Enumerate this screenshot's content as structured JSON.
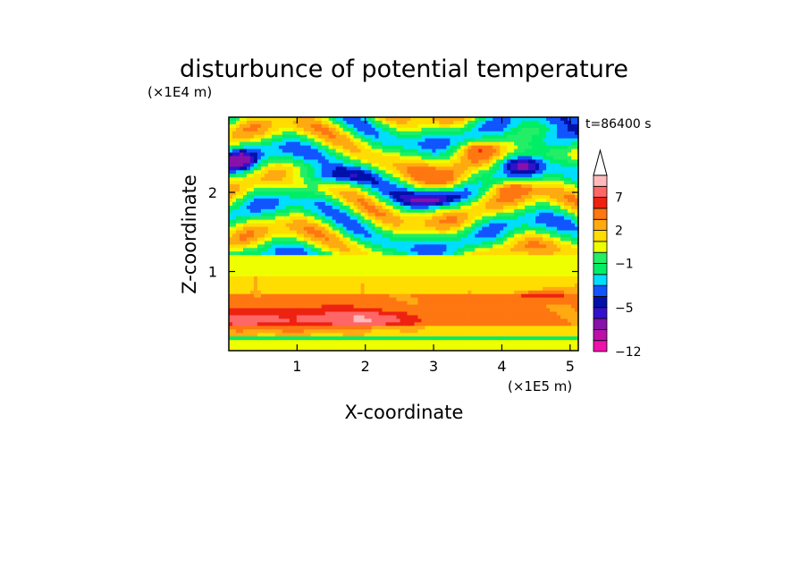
{
  "chart_data": {
    "type": "heatmap",
    "title": "disturbunce of potential temperature",
    "xlabel": "X-coordinate",
    "ylabel": "Z-coordinate",
    "x_unit": "(×1E5 m)",
    "y_unit": "(×1E4 m)",
    "time_label": "t=86400 s",
    "xlim": [
      0,
      5.12
    ],
    "ylim": [
      0,
      2.95
    ],
    "x_ticks": [
      "1",
      "2",
      "3",
      "4",
      "5"
    ],
    "y_ticks": [
      "1",
      "2"
    ],
    "x_tick_values": [
      1,
      2,
      3,
      4,
      5
    ],
    "y_tick_values": [
      1,
      2
    ],
    "colorbar": {
      "labels": [
        "7",
        "2",
        "−1",
        "−5",
        "−12"
      ],
      "label_levels": [
        7,
        2,
        -1,
        -5,
        -12
      ],
      "levels": [
        -12,
        -10,
        -8,
        -6,
        -5,
        -4,
        -3,
        -2,
        -1,
        0,
        1,
        2,
        3,
        5,
        7,
        9,
        12
      ],
      "colors": [
        "#ee11aa",
        "#bb11aa",
        "#8811aa",
        "#3311cc",
        "#0011aa",
        "#1155ff",
        "#00ddff",
        "#00ee66",
        "#22ee66",
        "#eeff00",
        "#ffdd00",
        "#ffaa11",
        "#ff7711",
        "#ee2211",
        "#ff6666",
        "#ffbbbb"
      ],
      "extend": "max"
    },
    "field_features": [
      {
        "x": 0.15,
        "z": 2.4,
        "rx": 0.3,
        "rz": 0.14,
        "value": -4
      },
      {
        "x": 1.5,
        "z": 2.2,
        "rx": 0.6,
        "rz": 0.12,
        "value": -4
      },
      {
        "x": 2.95,
        "z": 1.9,
        "rx": 0.4,
        "rz": 0.1,
        "value": -4.5
      },
      {
        "x": 4.7,
        "z": 2.65,
        "rx": 0.5,
        "rz": 0.15,
        "value": -5.5
      },
      {
        "x": 4.3,
        "z": 2.35,
        "rx": 0.25,
        "rz": 0.1,
        "value": -3
      },
      {
        "x": 0.6,
        "z": 0.4,
        "rx": 1.2,
        "rz": 0.15,
        "value": 4
      },
      {
        "x": 2.1,
        "z": 0.4,
        "rx": 0.8,
        "rz": 0.1,
        "value": 4
      },
      {
        "x": 3.2,
        "z": 2.15,
        "rx": 0.4,
        "rz": 0.12,
        "value": 4
      },
      {
        "x": 3.6,
        "z": 2.55,
        "rx": 0.3,
        "rz": 0.08,
        "value": 3
      },
      {
        "x": 4.6,
        "z": 0.7,
        "rx": 0.35,
        "rz": 0.06,
        "value": 4
      },
      {
        "x": 4.2,
        "z": 2.05,
        "rx": 0.3,
        "rz": 0.08,
        "value": 3
      }
    ]
  }
}
